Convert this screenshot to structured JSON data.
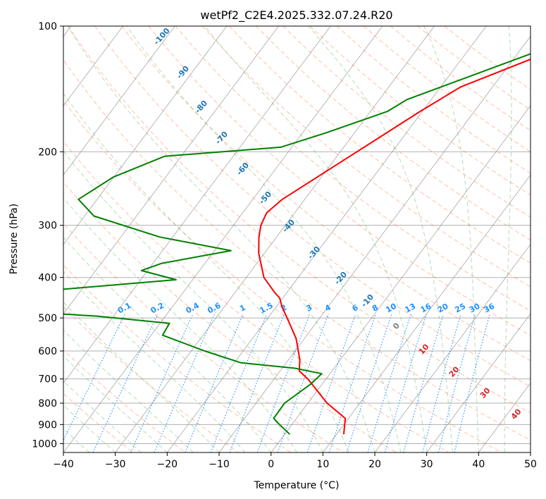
{
  "chart_data": {
    "type": "line",
    "title": "wetPf2_C2E4.2025.332.07.24.R20",
    "xlabel": "Temperature (°C)",
    "ylabel": "Pressure (hPa)",
    "xlim": [
      -40,
      50
    ],
    "ylim": [
      1050,
      100
    ],
    "x_ticks": [
      "−40",
      "−30",
      "−20",
      "−10",
      "0",
      "10",
      "20",
      "30",
      "40",
      "50"
    ],
    "x_tick_values": [
      -40,
      -30,
      -20,
      -10,
      0,
      10,
      20,
      30,
      40,
      50
    ],
    "y_ticks": [
      "100",
      "200",
      "300",
      "400",
      "500",
      "600",
      "700",
      "800",
      "900",
      "1000"
    ],
    "y_tick_values": [
      100,
      200,
      300,
      400,
      500,
      600,
      700,
      800,
      900,
      1000
    ],
    "skew_per_decade_p": 60.2,
    "series": [
      {
        "name": "temperature",
        "color": "#ff0000",
        "points": [
          {
            "p": 100,
            "t": 0.9
          },
          {
            "p": 108,
            "t": -0.5
          },
          {
            "p": 118,
            "t": -5.6
          },
          {
            "p": 140,
            "t": -16.2
          },
          {
            "p": 160,
            "t": -20.4
          },
          {
            "p": 200,
            "t": -26.8
          },
          {
            "p": 230,
            "t": -30.8
          },
          {
            "p": 260,
            "t": -34.3
          },
          {
            "p": 280,
            "t": -35.4
          },
          {
            "p": 300,
            "t": -34.7
          },
          {
            "p": 320,
            "t": -33.4
          },
          {
            "p": 350,
            "t": -31.1
          },
          {
            "p": 400,
            "t": -26.6
          },
          {
            "p": 435,
            "t": -22.3
          },
          {
            "p": 448,
            "t": -20.6
          },
          {
            "p": 470,
            "t": -18.9
          },
          {
            "p": 500,
            "t": -16.3
          },
          {
            "p": 560,
            "t": -11.6
          },
          {
            "p": 630,
            "t": -7.8
          },
          {
            "p": 670,
            "t": -6.3
          },
          {
            "p": 700,
            "t": -3.5
          },
          {
            "p": 800,
            "t": 3.7
          },
          {
            "p": 870,
            "t": 9.4
          },
          {
            "p": 950,
            "t": 11.4
          }
        ]
      },
      {
        "name": "dewpoint",
        "color": "#008000",
        "points": [
          {
            "p": 100,
            "t": 0.4
          },
          {
            "p": 106,
            "t": -1.1
          },
          {
            "p": 118,
            "t": -8.3
          },
          {
            "p": 150,
            "t": -24.7
          },
          {
            "p": 160,
            "t": -26.7
          },
          {
            "p": 180,
            "t": -35.4
          },
          {
            "p": 195,
            "t": -42.1
          },
          {
            "p": 205,
            "t": -63.2
          },
          {
            "p": 230,
            "t": -70.1
          },
          {
            "p": 260,
            "t": -73.6
          },
          {
            "p": 285,
            "t": -68.2
          },
          {
            "p": 320,
            "t": -52.5
          },
          {
            "p": 345,
            "t": -36.8
          },
          {
            "p": 370,
            "t": -48.3
          },
          {
            "p": 385,
            "t": -51.2
          },
          {
            "p": 405,
            "t": -43.2
          },
          {
            "p": 435,
            "t": -71.0
          },
          {
            "p": 475,
            "t": -77.4
          },
          {
            "p": 495,
            "t": -53.3
          },
          {
            "p": 515,
            "t": -38.2
          },
          {
            "p": 550,
            "t": -37.8
          },
          {
            "p": 600,
            "t": -27.4
          },
          {
            "p": 640,
            "t": -18.8
          },
          {
            "p": 660,
            "t": -7.5
          },
          {
            "p": 680,
            "t": -1.6
          },
          {
            "p": 720,
            "t": -2.2
          },
          {
            "p": 800,
            "t": -4.5
          },
          {
            "p": 870,
            "t": -4.4
          },
          {
            "p": 900,
            "t": -2.4
          },
          {
            "p": 950,
            "t": 1.0
          }
        ]
      }
    ],
    "dry_adiabat_labels": [
      "-100",
      "-90",
      "-80",
      "-70",
      "-60",
      "-50",
      "-40",
      "-30",
      "-20",
      "-10",
      "0",
      "10",
      "20",
      "30",
      "40"
    ],
    "mixing_ratio_labels": [
      "0.1",
      "0.2",
      "0.4",
      "0.6",
      "1",
      "1.5",
      "2",
      "3",
      "4",
      "6",
      "8",
      "10",
      "13",
      "16",
      "20",
      "25",
      "30",
      "36"
    ],
    "mixing_ratio_values": [
      0.1,
      0.2,
      0.4,
      0.6,
      1,
      1.5,
      2,
      3,
      4,
      6,
      8,
      10,
      13,
      16,
      20,
      25,
      30,
      36
    ],
    "colors": {
      "temperature": "#ff0000",
      "dewpoint": "#008000",
      "dry_adiabat": "#ff7f50",
      "moist_adiabat": "#2ca02c",
      "mixing_ratio": "#1e90ff",
      "isotherm": "#808080",
      "cold_label": "#1f77b4",
      "zero_label": "#808080",
      "warm_label": "#d62728",
      "mixing_label": "#1e90ff"
    }
  }
}
